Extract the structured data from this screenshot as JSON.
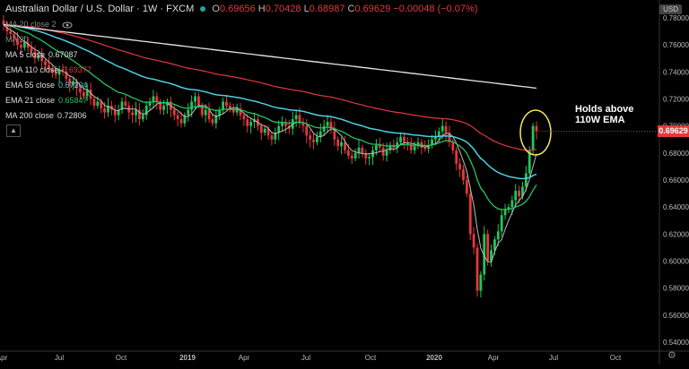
{
  "header": {
    "symbol": "Australian Dollar / U.S. Dollar · 1W · FXCM",
    "o_label": "O",
    "o": "0.69656",
    "h_label": "H",
    "h": "0.70428",
    "l_label": "L",
    "l": "0.68987",
    "c_label": "C",
    "c": "0.69629",
    "change": "−0.00048 (−0.07%)"
  },
  "legend": [
    {
      "label": "MA 20 close 2",
      "value": "",
      "color": "#888888"
    },
    {
      "label": "MA 20",
      "value": "",
      "color": "#888888"
    },
    {
      "label": "MA 5 close",
      "value": "0.67087",
      "color": "#dddddd"
    },
    {
      "label": "EMA 110 close",
      "value": "0.69377",
      "color": "#e5383b"
    },
    {
      "label": "EMA 55 close",
      "value": "0.67204",
      "color": "#4dd0e1"
    },
    {
      "label": "EMA 21 close",
      "value": "0.65847",
      "color": "#22c55e"
    },
    {
      "label": "MA 200 close",
      "value": "0.72806",
      "color": "#dddddd"
    }
  ],
  "currency_badge": "USD",
  "last_price": "0.69629",
  "annotation": "Holds above\n110W EMA",
  "icons": {
    "collapse": "chevron-up-icon",
    "settings": "gear-icon",
    "eye": "eye-icon"
  },
  "chart_data": {
    "type": "candlestick",
    "y_range": [
      0.54,
      0.78
    ],
    "y_ticks": [
      0.54,
      0.56,
      0.58,
      0.6,
      0.62,
      0.64,
      0.66,
      0.68,
      0.7,
      0.72,
      0.74,
      0.76,
      0.78
    ],
    "y_tick_labels": [
      "0.54000",
      "0.56000",
      "0.58000",
      "0.60000",
      "0.62000",
      "0.64000",
      "0.66000",
      "0.68000",
      "0.70000",
      "0.72000",
      "0.74000",
      "0.76000",
      "0.78000"
    ],
    "x_tick_labels": [
      "Apr",
      "Jul",
      "Oct",
      "2019",
      "Apr",
      "Jul",
      "Oct",
      "2020",
      "Apr",
      "Jul",
      "Oct"
    ],
    "close": [
      0.775,
      0.77,
      0.768,
      0.765,
      0.76,
      0.758,
      0.762,
      0.758,
      0.755,
      0.75,
      0.752,
      0.748,
      0.745,
      0.742,
      0.74,
      0.738,
      0.742,
      0.74,
      0.735,
      0.73,
      0.733,
      0.728,
      0.725,
      0.722,
      0.727,
      0.72,
      0.715,
      0.718,
      0.713,
      0.71,
      0.715,
      0.712,
      0.708,
      0.712,
      0.718,
      0.715,
      0.71,
      0.708,
      0.712,
      0.705,
      0.708,
      0.715,
      0.718,
      0.722,
      0.718,
      0.712,
      0.715,
      0.718,
      0.712,
      0.708,
      0.705,
      0.702,
      0.708,
      0.712,
      0.718,
      0.722,
      0.715,
      0.708,
      0.712,
      0.705,
      0.702,
      0.708,
      0.712,
      0.718,
      0.715,
      0.712,
      0.71,
      0.713,
      0.708,
      0.705,
      0.7,
      0.703,
      0.705,
      0.7,
      0.695,
      0.698,
      0.693,
      0.69,
      0.695,
      0.7,
      0.703,
      0.7,
      0.698,
      0.705,
      0.708,
      0.702,
      0.7,
      0.693,
      0.69,
      0.688,
      0.692,
      0.696,
      0.7,
      0.703,
      0.698,
      0.69,
      0.685,
      0.688,
      0.682,
      0.678,
      0.676,
      0.68,
      0.684,
      0.68,
      0.676,
      0.677,
      0.682,
      0.686,
      0.684,
      0.678,
      0.682,
      0.686,
      0.684,
      0.688,
      0.692,
      0.688,
      0.686,
      0.682,
      0.685,
      0.688,
      0.684,
      0.683,
      0.686,
      0.69,
      0.692,
      0.696,
      0.7,
      0.695,
      0.688,
      0.682,
      0.672,
      0.668,
      0.66,
      0.65,
      0.62,
      0.61,
      0.578,
      0.59,
      0.62,
      0.6,
      0.608,
      0.616,
      0.622,
      0.634,
      0.638,
      0.64,
      0.645,
      0.652,
      0.648,
      0.655,
      0.665,
      0.682,
      0.7,
      0.696
    ]
  }
}
